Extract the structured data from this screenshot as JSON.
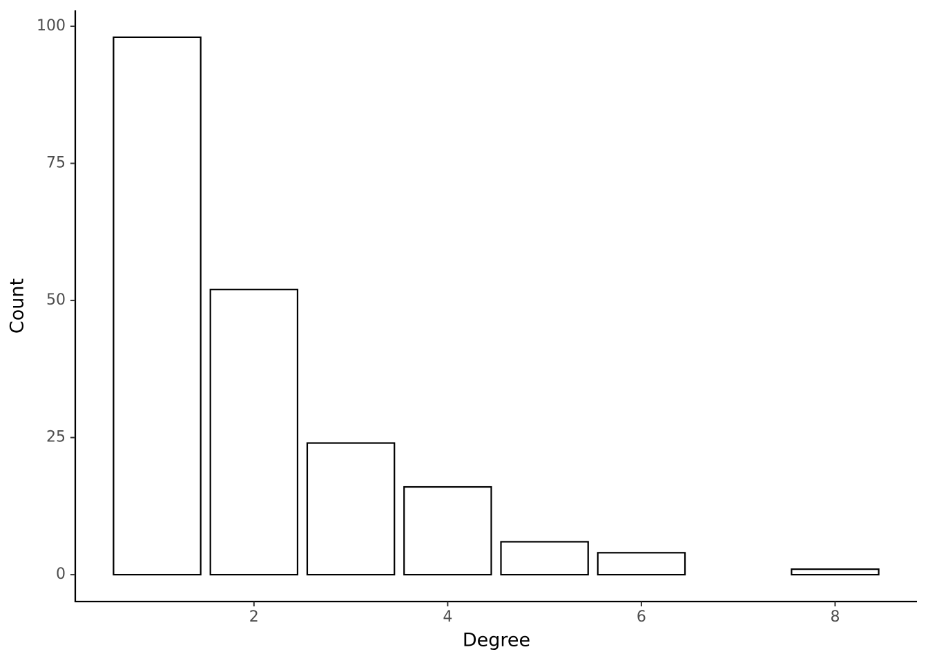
{
  "chart_data": {
    "type": "bar",
    "x_label": "Degree",
    "y_label": "Count",
    "x": [
      1,
      2,
      3,
      4,
      5,
      6,
      8
    ],
    "values": [
      98,
      52,
      24,
      16,
      6,
      4,
      1
    ],
    "color": "#ffffff",
    "edge_color": "#000000",
    "xlim": [
      0.155,
      8.845
    ],
    "xticks": [
      2,
      4,
      6,
      8
    ],
    "ylim": [
      -4.9,
      102.9
    ],
    "yticks": [
      0,
      25,
      50,
      75,
      100
    ],
    "grid": false
  }
}
